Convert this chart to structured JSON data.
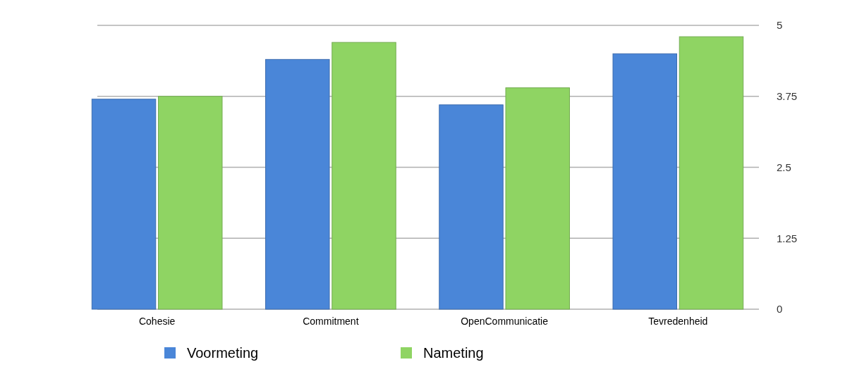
{
  "chart_data": {
    "type": "bar",
    "categories": [
      "Cohesie",
      "Commitment",
      "OpenCommunicatie",
      "Tevredenheid"
    ],
    "series": [
      {
        "name": "Voormeting",
        "color": "#4a86d8",
        "values": [
          3.7,
          4.4,
          3.6,
          4.5
        ]
      },
      {
        "name": "Nameting",
        "color": "#8fd463",
        "values": [
          3.75,
          4.7,
          3.9,
          4.8
        ]
      }
    ],
    "ylim": [
      0,
      5
    ],
    "yticks": [
      0,
      1.25,
      2.5,
      3.75,
      5
    ],
    "grid": "y",
    "legend": "bottom"
  }
}
